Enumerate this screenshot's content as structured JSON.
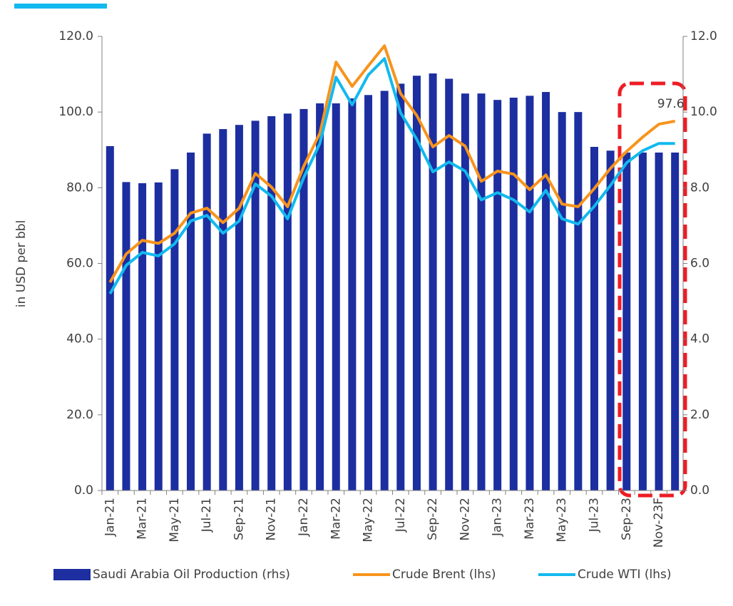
{
  "chart_data": {
    "type": "bar-line",
    "y_axis_label": "in USD per bbl",
    "categories": [
      "Jan-21",
      null,
      "Mar-21",
      null,
      "May-21",
      null,
      "Jul-21",
      null,
      "Sep-21",
      null,
      "Nov-21",
      null,
      "Jan-22",
      null,
      "Mar-22",
      null,
      "May-22",
      null,
      "Jul-22",
      null,
      "Sep-22",
      null,
      "Nov-22",
      null,
      "Jan-23",
      null,
      "Mar-23",
      null,
      "May-23",
      null,
      "Jul-23",
      null,
      "Sep-23",
      null,
      "Nov-23F",
      null
    ],
    "series": [
      {
        "name": "Saudi Arabia Oil Production (rhs)",
        "type": "bar",
        "axis": "y2",
        "color": "#1c2ea0",
        "values": [
          9.1,
          8.15,
          8.12,
          8.14,
          8.49,
          8.93,
          9.43,
          9.55,
          9.66,
          9.77,
          9.89,
          9.96,
          10.08,
          10.23,
          10.23,
          10.36,
          10.45,
          10.56,
          10.75,
          10.96,
          11.02,
          10.88,
          10.49,
          10.49,
          10.32,
          10.38,
          10.43,
          10.53,
          10.0,
          10.0,
          9.08,
          8.98,
          8.93,
          8.93,
          8.93,
          8.93
        ]
      },
      {
        "name": "Crude Brent (lhs)",
        "type": "line",
        "color": "#f7941d",
        "values": [
          55.0,
          62.5,
          66.1,
          65.3,
          68.0,
          73.3,
          74.6,
          70.8,
          74.6,
          83.8,
          80.2,
          75.0,
          85.7,
          94.4,
          113.2,
          106.8,
          112.2,
          117.5,
          104.9,
          99.1,
          90.8,
          93.8,
          91.0,
          81.7,
          84.4,
          83.6,
          79.5,
          83.4,
          75.7,
          75.0,
          79.8,
          85.1,
          89.6,
          93.4,
          96.8,
          97.6
        ],
        "value_labels": [
          null,
          null,
          null,
          null,
          null,
          null,
          null,
          null,
          null,
          null,
          null,
          null,
          null,
          null,
          null,
          null,
          null,
          null,
          null,
          null,
          null,
          null,
          null,
          null,
          null,
          null,
          null,
          null,
          null,
          null,
          null,
          null,
          null,
          null,
          null,
          "97.6"
        ]
      },
      {
        "name": "Crude WTI (lhs)",
        "type": "line",
        "color": "#12b9ee",
        "values": [
          52.0,
          59.5,
          62.9,
          62.0,
          65.2,
          71.2,
          72.7,
          68.0,
          71.2,
          81.0,
          77.8,
          71.8,
          82.7,
          91.7,
          109.2,
          101.9,
          109.8,
          114.1,
          99.8,
          92.8,
          84.2,
          86.8,
          84.4,
          76.8,
          78.7,
          76.8,
          73.6,
          79.3,
          71.8,
          70.4,
          75.1,
          80.6,
          86.6,
          89.8,
          91.7,
          91.7
        ]
      }
    ],
    "ylim": [
      0,
      120
    ],
    "yticks": [
      {
        "value": 0,
        "label": "0.0"
      },
      {
        "value": 20,
        "label": "20.0"
      },
      {
        "value": 40,
        "label": "40.0"
      },
      {
        "value": 60,
        "label": "60.0"
      },
      {
        "value": 80,
        "label": "80.0"
      },
      {
        "value": 100,
        "label": "100.0"
      },
      {
        "value": 120,
        "label": "120.0"
      }
    ],
    "y2lim": [
      0,
      12
    ],
    "y2ticks": [
      {
        "value": 0,
        "label": "0.0"
      },
      {
        "value": 2,
        "label": "2.0"
      },
      {
        "value": 4,
        "label": "4.0"
      },
      {
        "value": 6,
        "label": "6.0"
      },
      {
        "value": 8,
        "label": "8.0"
      },
      {
        "value": 10,
        "label": "10.0"
      },
      {
        "value": 12,
        "label": "12.0"
      }
    ],
    "grid": false,
    "legend": "bottom"
  }
}
